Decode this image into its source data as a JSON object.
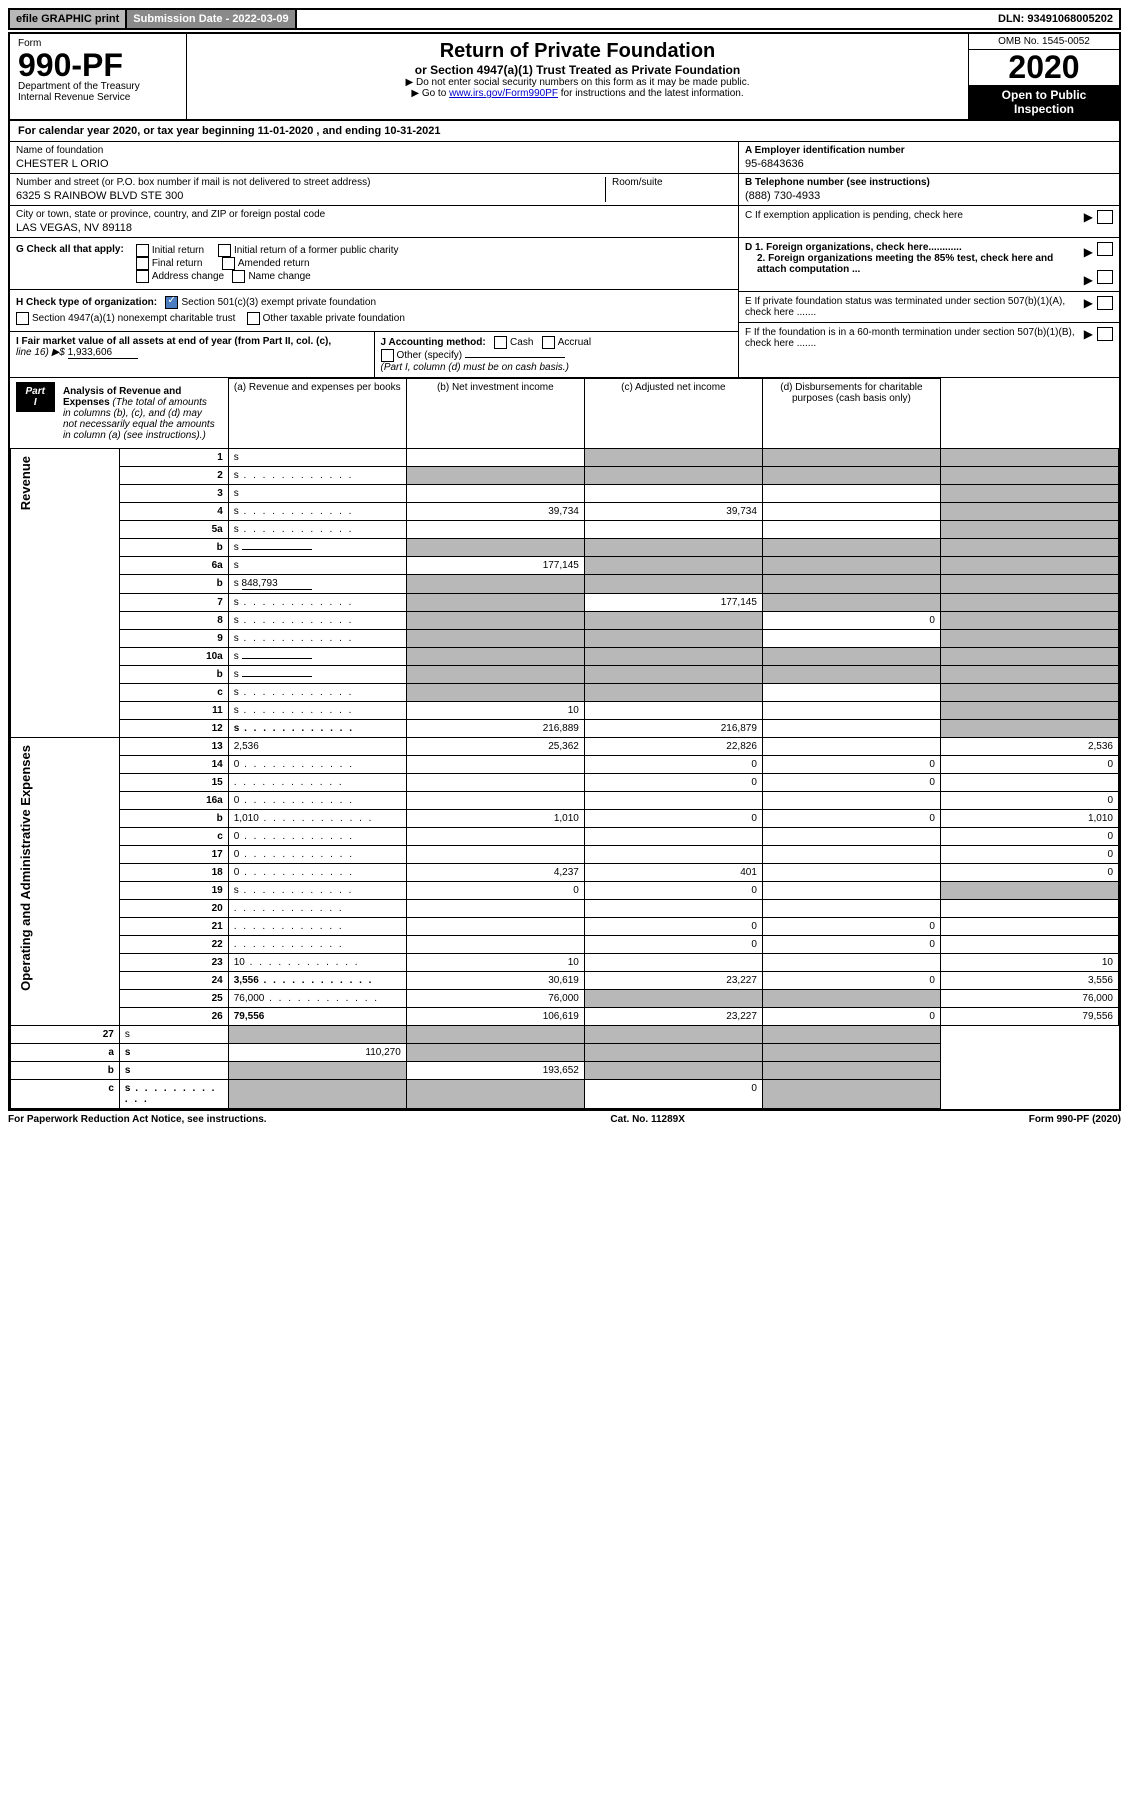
{
  "top_bar": {
    "efile": "efile GRAPHIC print",
    "submission_label": "Submission Date - 2022-03-09",
    "dln": "DLN: 93491068005202"
  },
  "header": {
    "form_label": "Form",
    "form_number": "990-PF",
    "dept": "Department of the Treasury",
    "irs": "Internal Revenue Service",
    "title": "Return of Private Foundation",
    "subtitle": "or Section 4947(a)(1) Trust Treated as Private Foundation",
    "note1": "▶ Do not enter social security numbers on this form as it may be made public.",
    "note2_pre": "▶ Go to ",
    "note2_link": "www.irs.gov/Form990PF",
    "note2_post": " for instructions and the latest information.",
    "omb": "OMB No. 1545-0052",
    "year": "2020",
    "open": "Open to Public Inspection"
  },
  "cal_year": {
    "text_pre": "For calendar year 2020, or tax year beginning ",
    "begin": "11-01-2020",
    "text_mid": " , and ending ",
    "end": "10-31-2021"
  },
  "foundation": {
    "name_label": "Name of foundation",
    "name": "CHESTER L ORIO",
    "addr_label": "Number and street (or P.O. box number if mail is not delivered to street address)",
    "addr": "6325 S RAINBOW BLVD STE 300",
    "room_label": "Room/suite",
    "city_label": "City or town, state or province, country, and ZIP or foreign postal code",
    "city": "LAS VEGAS, NV  89118",
    "ein_label": "A Employer identification number",
    "ein": "95-6843636",
    "phone_label": "B Telephone number (see instructions)",
    "phone": "(888) 730-4933",
    "c_label": "C If exemption application is pending, check here",
    "d1": "D 1. Foreign organizations, check here............",
    "d2": "2. Foreign organizations meeting the 85% test, check here and attach computation ...",
    "e_label": "E  If private foundation status was terminated under section 507(b)(1)(A), check here .......",
    "f_label": "F  If the foundation is in a 60-month termination under section 507(b)(1)(B), check here .......",
    "g_label": "G Check all that apply:",
    "g_opts": [
      "Initial return",
      "Initial return of a former public charity",
      "Final return",
      "Amended return",
      "Address change",
      "Name change"
    ],
    "h_label": "H Check type of organization:",
    "h_opt1": "Section 501(c)(3) exempt private foundation",
    "h_opt2": "Section 4947(a)(1) nonexempt charitable trust",
    "h_opt3": "Other taxable private foundation",
    "i_label": "I Fair market value of all assets at end of year (from Part II, col. (c),",
    "i_line": "line 16) ▶$ ",
    "i_val": "1,933,606",
    "j_label": "J Accounting method:",
    "j_cash": "Cash",
    "j_accrual": "Accrual",
    "j_other": "Other (specify)",
    "j_note": "(Part I, column (d) must be on cash basis.)"
  },
  "part1": {
    "label": "Part I",
    "title": "Analysis of Revenue and Expenses",
    "note": " (The total of amounts in columns (b), (c), and (d) may not necessarily equal the amounts in column (a) (see instructions).)",
    "col_a": "(a)    Revenue and expenses per books",
    "col_b": "(b)    Net investment income",
    "col_c": "(c)   Adjusted net income",
    "col_d": "(d)   Disbursements for charitable purposes (cash basis only)"
  },
  "sections": {
    "revenue": "Revenue",
    "expenses": "Operating and Administrative Expenses"
  },
  "rows": [
    {
      "n": "1",
      "d": "s",
      "a": "",
      "b": "s",
      "c": "s"
    },
    {
      "n": "2",
      "d": "s",
      "a": "s",
      "b": "s",
      "c": "s",
      "dots": true
    },
    {
      "n": "3",
      "d": "s",
      "a": "",
      "b": "",
      "c": ""
    },
    {
      "n": "4",
      "d": "s",
      "a": "39,734",
      "b": "39,734",
      "c": "",
      "dots": true
    },
    {
      "n": "5a",
      "d": "s",
      "a": "",
      "b": "",
      "c": "",
      "dots": true
    },
    {
      "n": "b",
      "d": "s",
      "a": "s",
      "b": "s",
      "c": "s",
      "inline": true
    },
    {
      "n": "6a",
      "d": "s",
      "a": "177,145",
      "b": "s",
      "c": "s"
    },
    {
      "n": "b",
      "d": "s",
      "a": "s",
      "b": "s",
      "c": "s",
      "inline": true,
      "inlineval": "848,793"
    },
    {
      "n": "7",
      "d": "s",
      "a": "s",
      "b": "177,145",
      "c": "s",
      "dots": true
    },
    {
      "n": "8",
      "d": "s",
      "a": "s",
      "b": "s",
      "c": "0",
      "dots": true
    },
    {
      "n": "9",
      "d": "s",
      "a": "s",
      "b": "s",
      "c": "",
      "dots": true
    },
    {
      "n": "10a",
      "d": "s",
      "a": "s",
      "b": "s",
      "c": "s",
      "inline": true
    },
    {
      "n": "b",
      "d": "s",
      "a": "s",
      "b": "s",
      "c": "s",
      "inline": true,
      "dots": true
    },
    {
      "n": "c",
      "d": "s",
      "a": "s",
      "b": "s",
      "c": "",
      "dots": true
    },
    {
      "n": "11",
      "d": "s",
      "a": "10",
      "b": "",
      "c": "",
      "dots": true
    },
    {
      "n": "12",
      "d": "s",
      "a": "216,889",
      "b": "216,879",
      "c": "",
      "bold": true,
      "dots": true
    }
  ],
  "exp_rows": [
    {
      "n": "13",
      "d": "2,536",
      "a": "25,362",
      "b": "22,826",
      "c": ""
    },
    {
      "n": "14",
      "d": "0",
      "a": "",
      "b": "0",
      "c": "0",
      "dots": true
    },
    {
      "n": "15",
      "d": "",
      "a": "",
      "b": "0",
      "c": "0",
      "dots": true
    },
    {
      "n": "16a",
      "d": "0",
      "a": "",
      "b": "",
      "c": "",
      "dots": true
    },
    {
      "n": "b",
      "d": "1,010",
      "a": "1,010",
      "b": "0",
      "c": "0",
      "dots": true
    },
    {
      "n": "c",
      "d": "0",
      "a": "",
      "b": "",
      "c": "",
      "dots": true
    },
    {
      "n": "17",
      "d": "0",
      "a": "",
      "b": "",
      "c": "",
      "dots": true
    },
    {
      "n": "18",
      "d": "0",
      "a": "4,237",
      "b": "401",
      "c": "",
      "dots": true
    },
    {
      "n": "19",
      "d": "s",
      "a": "0",
      "b": "0",
      "c": "",
      "dots": true
    },
    {
      "n": "20",
      "d": "",
      "a": "",
      "b": "",
      "c": "",
      "dots": true
    },
    {
      "n": "21",
      "d": "",
      "a": "",
      "b": "0",
      "c": "0",
      "dots": true
    },
    {
      "n": "22",
      "d": "",
      "a": "",
      "b": "0",
      "c": "0",
      "dots": true
    },
    {
      "n": "23",
      "d": "10",
      "a": "10",
      "b": "",
      "c": "",
      "dots": true
    },
    {
      "n": "24",
      "d": "3,556",
      "a": "30,619",
      "b": "23,227",
      "c": "0",
      "bold": true,
      "dots": true
    },
    {
      "n": "25",
      "d": "76,000",
      "a": "76,000",
      "b": "s",
      "c": "s",
      "dots": true
    },
    {
      "n": "26",
      "d": "79,556",
      "a": "106,619",
      "b": "23,227",
      "c": "0",
      "bold": true
    }
  ],
  "final_rows": [
    {
      "n": "27",
      "d": "s",
      "a": "s",
      "b": "s",
      "c": "s"
    },
    {
      "n": "a",
      "d": "s",
      "a": "110,270",
      "b": "s",
      "c": "s",
      "bold": true
    },
    {
      "n": "b",
      "d": "s",
      "a": "s",
      "b": "193,652",
      "c": "s",
      "bold": true
    },
    {
      "n": "c",
      "d": "s",
      "a": "s",
      "b": "s",
      "c": "0",
      "bold": true,
      "dots": true
    }
  ],
  "footer": {
    "left": "For Paperwork Reduction Act Notice, see instructions.",
    "mid": "Cat. No. 11289X",
    "right": "Form 990-PF (2020)"
  }
}
